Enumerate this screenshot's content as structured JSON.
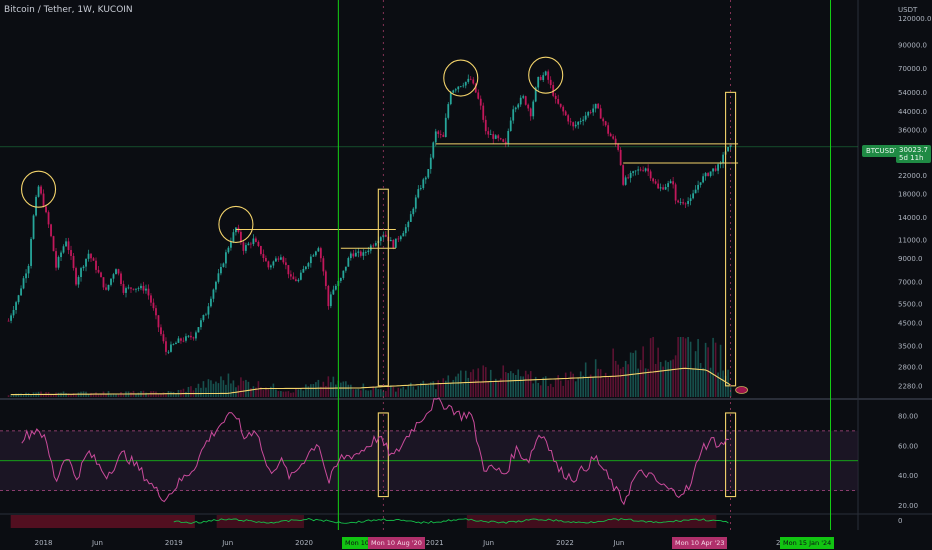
{
  "header": {
    "title": "Bitcoin / Tether, 1W, KUCOIN",
    "currency": "USDT",
    "ticker": "BTCUSDT",
    "last_price": "30023.7",
    "countdown": "5d 11h"
  },
  "date_tags": {
    "cursor_a_partial": "Mon 10 ...",
    "cursor_b": "Mon 10 Aug '20",
    "cursor_c": "Mon 10 Apr '23",
    "cursor_d": "Mon 15 Jan '24",
    "year_partial": "20"
  },
  "x_axis": {
    "labels": [
      "2018",
      "Jun",
      "2019",
      "Jun",
      "2020",
      "2021",
      "Jun",
      "2022",
      "Jun",
      "2023"
    ]
  },
  "colors": {
    "up": "#26a69a",
    "down": "#c2185b",
    "annotation": "#f3d36b",
    "cursor": "#15d015",
    "rsi": "#c94b9b",
    "rsi_band": "#2a1d33"
  },
  "chart_data": [
    {
      "type": "candlestick",
      "title": "Bitcoin / Tether, 1W, KUCOIN",
      "ylabel": "USDT",
      "yscale": "log",
      "ylim": [
        2000,
        140000
      ],
      "y_ticks": [
        2280,
        2800,
        3500,
        4500,
        5500,
        7000,
        9000,
        11000,
        14000,
        18000,
        22000,
        28000,
        36000,
        44000,
        54000,
        70000,
        90000,
        120000
      ],
      "y_tick_labels": [
        "2280.0",
        "2800.0",
        "3500.0",
        "4500.0",
        "5500.0",
        "7000.0",
        "9000.0",
        "11000.0",
        "14000.0",
        "18000.0",
        "22000.0",
        "28000.0",
        "36000.0",
        "44000.0",
        "54000.0",
        "70000.0",
        "90000.0",
        "120000.0"
      ],
      "x_range": [
        "2017-09-01",
        "2024-04-01"
      ],
      "series": [
        {
          "close": [
            [
              "2017-09-25",
              4600
            ],
            [
              "2017-10-23",
              6000
            ],
            [
              "2017-11-20",
              8500
            ],
            [
              "2017-12-11",
              17000
            ],
            [
              "2017-12-18",
              19500
            ],
            [
              "2018-01-08",
              14500
            ],
            [
              "2018-02-05",
              8200
            ],
            [
              "2018-03-05",
              11000
            ],
            [
              "2018-04-02",
              7000
            ],
            [
              "2018-05-07",
              9500
            ],
            [
              "2018-06-25",
              6300
            ],
            [
              "2018-07-23",
              8200
            ],
            [
              "2018-08-13",
              6400
            ],
            [
              "2018-09-10",
              6600
            ],
            [
              "2018-10-15",
              6500
            ],
            [
              "2018-11-19",
              4300
            ],
            [
              "2018-12-10",
              3300
            ],
            [
              "2019-01-14",
              3700
            ],
            [
              "2019-02-25",
              3900
            ],
            [
              "2019-04-01",
              5000
            ],
            [
              "2019-05-13",
              8000
            ],
            [
              "2019-06-24",
              12500
            ],
            [
              "2019-07-15",
              10000
            ],
            [
              "2019-08-12",
              11000
            ],
            [
              "2019-09-23",
              8200
            ],
            [
              "2019-10-28",
              9400
            ],
            [
              "2019-11-25",
              7200
            ],
            [
              "2019-12-16",
              7100
            ],
            [
              "2020-01-13",
              8800
            ],
            [
              "2020-02-10",
              10300
            ],
            [
              "2020-03-09",
              5400
            ],
            [
              "2020-03-16",
              6200
            ],
            [
              "2020-04-13",
              7200
            ],
            [
              "2020-05-11",
              9500
            ],
            [
              "2020-06-15",
              9400
            ],
            [
              "2020-07-27",
              11200
            ],
            [
              "2020-08-10",
              11800
            ],
            [
              "2020-09-07",
              10400
            ],
            [
              "2020-10-19",
              13000
            ],
            [
              "2020-11-16",
              18500
            ],
            [
              "2020-12-14",
              23000
            ],
            [
              "2021-01-04",
              35000
            ],
            [
              "2021-01-25",
              33000
            ],
            [
              "2021-02-15",
              55000
            ],
            [
              "2021-03-08",
              58000
            ],
            [
              "2021-04-12",
              62000
            ],
            [
              "2021-05-10",
              46000
            ],
            [
              "2021-05-24",
              35000
            ],
            [
              "2021-06-21",
              33000
            ],
            [
              "2021-07-19",
              30500
            ],
            [
              "2021-08-09",
              46000
            ],
            [
              "2021-09-06",
              51000
            ],
            [
              "2021-09-27",
              43000
            ],
            [
              "2021-10-18",
              62000
            ],
            [
              "2021-11-08",
              66000
            ],
            [
              "2021-12-06",
              49000
            ],
            [
              "2022-01-03",
              42000
            ],
            [
              "2022-01-24",
              37000
            ],
            [
              "2022-03-28",
              46500
            ],
            [
              "2022-05-02",
              35000
            ],
            [
              "2022-05-30",
              29500
            ],
            [
              "2022-06-13",
              20500
            ],
            [
              "2022-07-18",
              23000
            ],
            [
              "2022-08-15",
              24000
            ],
            [
              "2022-09-19",
              19000
            ],
            [
              "2022-10-31",
              20500
            ],
            [
              "2022-11-07",
              16500
            ],
            [
              "2022-12-19",
              16800
            ],
            [
              "2023-01-16",
              21000
            ],
            [
              "2023-02-20",
              23500
            ],
            [
              "2023-03-13",
              24500
            ],
            [
              "2023-03-20",
              28000
            ],
            [
              "2023-04-10",
              30023.7
            ]
          ]
        }
      ],
      "volume": {
        "values": [
          [
            "2017-10-01",
            0.05
          ],
          [
            "2018-01-01",
            0.08
          ],
          [
            "2019-01-01",
            0.09
          ],
          [
            "2019-06-01",
            0.35
          ],
          [
            "2019-12-01",
            0.12
          ],
          [
            "2020-03-15",
            0.3
          ],
          [
            "2020-08-01",
            0.15
          ],
          [
            "2021-01-01",
            0.25
          ],
          [
            "2021-05-15",
            0.5
          ],
          [
            "2021-12-01",
            0.3
          ],
          [
            "2022-06-15",
            0.75
          ],
          [
            "2022-11-07",
            1.0
          ],
          [
            "2023-03-15",
            0.8
          ],
          [
            "2023-04-10",
            0.3
          ]
        ],
        "ma": [
          [
            "2017-10-01",
            0.04
          ],
          [
            "2019-06-01",
            0.06
          ],
          [
            "2019-09-01",
            0.14
          ],
          [
            "2020-06-01",
            0.15
          ],
          [
            "2021-01-01",
            0.22
          ],
          [
            "2021-12-01",
            0.3
          ],
          [
            "2022-06-01",
            0.35
          ],
          [
            "2022-12-01",
            0.48
          ],
          [
            "2023-02-01",
            0.45
          ],
          [
            "2023-04-10",
            0.2
          ]
        ]
      },
      "horizontal_levels": [
        {
          "from": "2019-06-24",
          "to": "2020-09-14",
          "y": 12300
        },
        {
          "from": "2020-04-13",
          "to": "2020-09-14",
          "y": 10050
        },
        {
          "from": "2021-01-04",
          "to": "2023-05-01",
          "y": 31000
        },
        {
          "from": "2022-06-13",
          "to": "2023-05-01",
          "y": 25200
        }
      ],
      "highlight_circles": [
        {
          "x": "2017-12-18",
          "y": 19000
        },
        {
          "x": "2019-06-24",
          "y": 13000
        },
        {
          "x": "2021-03-15",
          "y": 63000
        },
        {
          "x": "2021-11-08",
          "y": 65000
        }
      ],
      "boxes": [
        {
          "from": "2020-07-27",
          "to": "2020-08-24",
          "y_top": 19000,
          "y_bottom": 2280
        },
        {
          "from": "2023-03-27",
          "to": "2023-04-24",
          "y_top": 54000,
          "y_bottom": 2280
        }
      ],
      "vertical_lines": [
        "2020-04-06",
        "2024-01-15"
      ],
      "dashed_lines": [
        "2020-08-10",
        "2023-04-10"
      ]
    },
    {
      "type": "line",
      "title": "",
      "ylim": [
        15,
        90
      ],
      "y_ticks": [
        20,
        40,
        60,
        80
      ],
      "y_tick_labels": [
        "20.00",
        "40.00",
        "60.00",
        "80.00"
      ],
      "bands": [
        30,
        50,
        70
      ],
      "series": [
        {
          "values": [
            [
              "2017-11-01",
              65
            ],
            [
              "2017-12-18",
              72
            ],
            [
              "2018-01-08",
              62
            ],
            [
              "2018-02-05",
              36
            ],
            [
              "2018-03-05",
              55
            ],
            [
              "2018-04-02",
              38
            ],
            [
              "2018-05-07",
              56
            ],
            [
              "2018-06-25",
              40
            ],
            [
              "2018-08-13",
              55
            ],
            [
              "2018-09-24",
              45
            ],
            [
              "2018-11-19",
              28
            ],
            [
              "2018-12-10",
              25
            ],
            [
              "2019-01-14",
              35
            ],
            [
              "2019-02-25",
              45
            ],
            [
              "2019-04-01",
              62
            ],
            [
              "2019-05-13",
              75
            ],
            [
              "2019-06-24",
              82
            ],
            [
              "2019-07-15",
              65
            ],
            [
              "2019-08-19",
              72
            ],
            [
              "2019-09-23",
              42
            ],
            [
              "2019-10-28",
              50
            ],
            [
              "2019-11-25",
              38
            ],
            [
              "2020-01-13",
              55
            ],
            [
              "2020-02-10",
              63
            ],
            [
              "2020-03-09",
              35
            ],
            [
              "2020-04-13",
              52
            ],
            [
              "2020-06-01",
              55
            ],
            [
              "2020-07-27",
              66
            ],
            [
              "2020-09-07",
              52
            ],
            [
              "2020-10-26",
              70
            ],
            [
              "2020-12-14",
              84
            ],
            [
              "2021-01-04",
              90
            ],
            [
              "2021-02-15",
              86
            ],
            [
              "2021-03-15",
              80
            ],
            [
              "2021-04-12",
              82
            ],
            [
              "2021-05-17",
              46
            ],
            [
              "2021-06-21",
              44
            ],
            [
              "2021-07-19",
              41
            ],
            [
              "2021-08-16",
              58
            ],
            [
              "2021-09-20",
              50
            ],
            [
              "2021-10-18",
              67
            ],
            [
              "2021-11-08",
              66
            ],
            [
              "2021-12-13",
              44
            ],
            [
              "2022-01-24",
              38
            ],
            [
              "2022-03-28",
              52
            ],
            [
              "2022-05-09",
              36
            ],
            [
              "2022-06-13",
              22
            ],
            [
              "2022-07-18",
              40
            ],
            [
              "2022-08-15",
              42
            ],
            [
              "2022-09-26",
              34
            ],
            [
              "2022-11-07",
              28
            ],
            [
              "2022-12-19",
              32
            ],
            [
              "2023-01-16",
              58
            ],
            [
              "2023-02-20",
              64
            ],
            [
              "2023-03-13",
              60
            ],
            [
              "2023-04-10",
              66
            ]
          ]
        }
      ]
    }
  ]
}
